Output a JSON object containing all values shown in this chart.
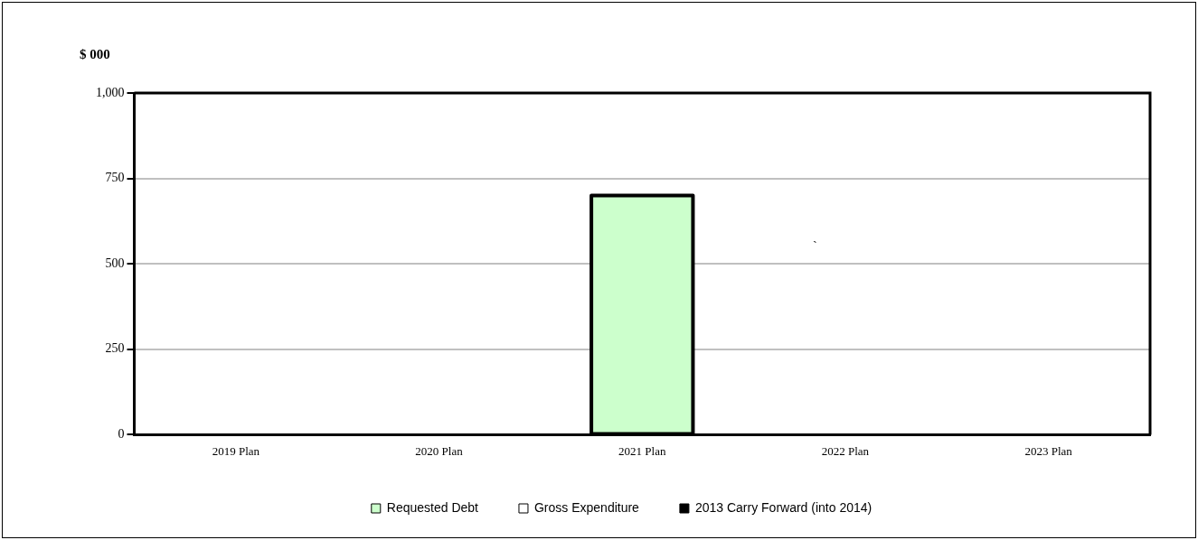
{
  "chart_data": {
    "type": "bar",
    "stacked": true,
    "ylabel": "$ 000",
    "categories": [
      "2019 Plan",
      "2020 Plan",
      "2021 Plan",
      "2022 Plan",
      "2023 Plan"
    ],
    "series": [
      {
        "name": "Requested Debt",
        "color": "#ccffcc",
        "values": [
          null,
          null,
          700,
          null,
          null
        ]
      },
      {
        "name": "Gross Expenditure",
        "color": "#ffffff",
        "values": [
          null,
          null,
          null,
          null,
          null
        ]
      },
      {
        "name": "2013 Carry Forward (into 2014)",
        "color": "#000000",
        "values": [
          null,
          null,
          null,
          null,
          null
        ]
      }
    ],
    "ylim": [
      0,
      1000
    ],
    "yticks": [
      0,
      250,
      500,
      750,
      {
        "value": 1000,
        "label": "1,000"
      }
    ],
    "grid": "y",
    "legend": "bottom",
    "annotations": [
      "`"
    ]
  }
}
